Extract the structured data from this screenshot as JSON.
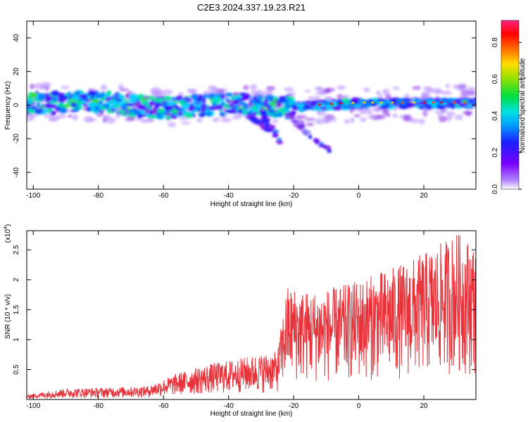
{
  "figure": {
    "title": "C2E3.2024.337.19.23.R21"
  },
  "colors": {
    "snr_line": "#e8323a",
    "axis": "#000000",
    "background": "#ffffff"
  },
  "chart_data": [
    {
      "type": "heatmap",
      "xlabel": "Height of straight line (km)",
      "ylabel": "Frequency (Hz)",
      "xlim": [
        -102,
        36
      ],
      "ylim": [
        -50,
        50
      ],
      "x_ticks": [
        -100,
        -80,
        -60,
        -40,
        -20,
        0,
        20
      ],
      "y_ticks": [
        -40,
        -20,
        0,
        20,
        40
      ],
      "colorbar": {
        "label": "Normalized spectral amplitude",
        "range": [
          0,
          0.92
        ],
        "ticks": [
          0.0,
          0.2,
          0.4,
          0.6,
          0.8
        ],
        "colormap": "rainbow (purple → blue → cyan → green → yellow → red → magenta)"
      },
      "description_points": [
        {
          "x": -100,
          "y": 1
        },
        {
          "x": -80,
          "y": 2
        },
        {
          "x": -60,
          "y": -2
        },
        {
          "x": -40,
          "y": 1
        },
        {
          "x": -20,
          "y": -1
        },
        {
          "x": 0,
          "y": 1
        },
        {
          "x": 20,
          "y": 1
        },
        {
          "x": 35,
          "y": 1
        }
      ],
      "grid": false
    },
    {
      "type": "line",
      "xlabel": "Height of straight line (km)",
      "ylabel": "SNR (10 * v/v)",
      "y_scale_label": "(x10",
      "y_scale_exp": "4",
      "xlim": [
        -102,
        36
      ],
      "ylim": [
        0,
        2.82
      ],
      "x_ticks": [
        -100,
        -80,
        -60,
        -40,
        -20,
        0,
        20
      ],
      "y_ticks": [
        0.5,
        1.0,
        1.5,
        2.0,
        2.5
      ],
      "series": [
        {
          "envelope": [
            {
              "x": -102,
              "y": 0.08
            },
            {
              "x": -90,
              "y": 0.18
            },
            {
              "x": -75,
              "y": 0.2
            },
            {
              "x": -65,
              "y": 0.22
            },
            {
              "x": -55,
              "y": 0.45
            },
            {
              "x": -45,
              "y": 0.6
            },
            {
              "x": -35,
              "y": 0.7
            },
            {
              "x": -25,
              "y": 0.8
            },
            {
              "x": -22,
              "y": 1.9
            },
            {
              "x": -15,
              "y": 1.8
            },
            {
              "x": -5,
              "y": 1.9
            },
            {
              "x": 5,
              "y": 2.1
            },
            {
              "x": 15,
              "y": 2.3
            },
            {
              "x": 25,
              "y": 2.6
            },
            {
              "x": 30,
              "y": 2.8
            },
            {
              "x": 36,
              "y": 2.6
            }
          ]
        }
      ],
      "grid": false
    }
  ]
}
